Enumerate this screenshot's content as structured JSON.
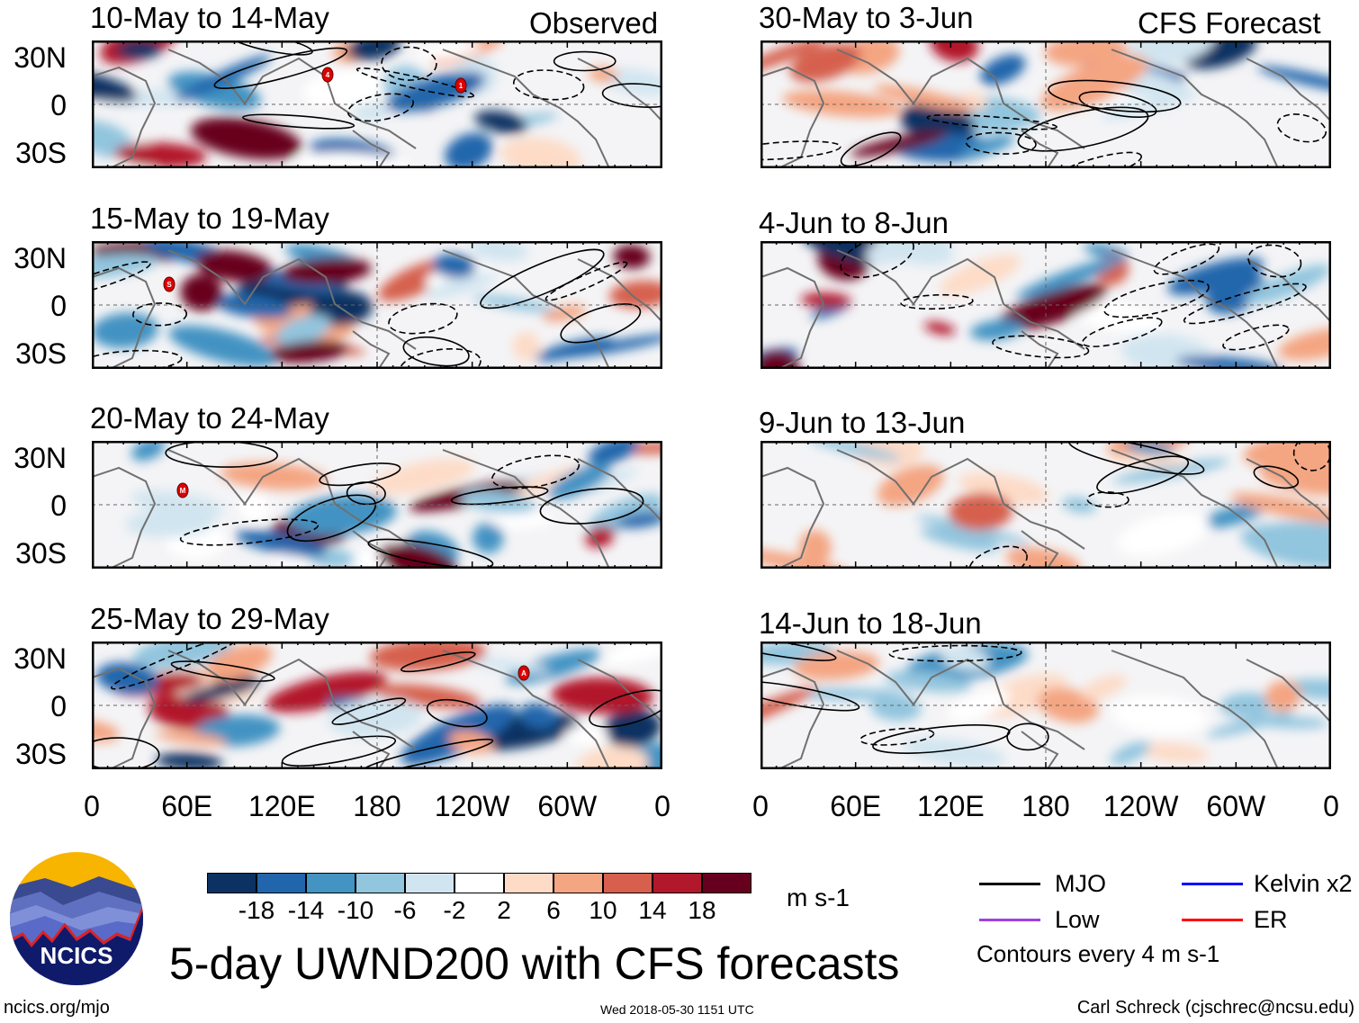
{
  "figure": {
    "title": "5-day UWND200 with CFS forecasts",
    "left_column_label": "Observed",
    "right_column_label": "CFS Forecast",
    "website": "ncics.org/mjo",
    "timestamp": "Wed 2018-05-30 1151 UTC",
    "author": "Carl Schreck (cjschrec@ncsu.edu)",
    "logo_text": "NCICS"
  },
  "panels": [
    {
      "title": "10-May to 14-May",
      "column": "observed",
      "storms": [
        {
          "label": "4"
        },
        {
          "label": "1"
        }
      ]
    },
    {
      "title": "15-May to 19-May",
      "column": "observed",
      "storms": [
        {
          "label": "S"
        }
      ]
    },
    {
      "title": "20-May to 24-May",
      "column": "observed",
      "storms": [
        {
          "label": "M"
        }
      ]
    },
    {
      "title": "25-May to 29-May",
      "column": "observed",
      "storms": [
        {
          "label": "A"
        }
      ]
    },
    {
      "title": "30-May to 3-Jun",
      "column": "forecast",
      "storms": []
    },
    {
      "title": "4-Jun to 8-Jun",
      "column": "forecast",
      "storms": []
    },
    {
      "title": "9-Jun to 13-Jun",
      "column": "forecast",
      "storms": []
    },
    {
      "title": "14-Jun to 18-Jun",
      "column": "forecast",
      "storms": []
    }
  ],
  "axes": {
    "lat_labels": [
      "30N",
      "0",
      "30S"
    ],
    "lon_labels": [
      "0",
      "60E",
      "120E",
      "180",
      "120W",
      "60W",
      "0"
    ]
  },
  "colorbar": {
    "units": "m s-1",
    "labels": [
      "-18",
      "-14",
      "-10",
      "-6",
      "-2",
      "2",
      "6",
      "10",
      "14",
      "18"
    ],
    "colors": [
      "#0b3262",
      "#2166ac",
      "#4393c3",
      "#92c5de",
      "#d1e5f0",
      "#ffffff",
      "#fddbc7",
      "#f4a582",
      "#d6604d",
      "#b2182b",
      "#67001f"
    ]
  },
  "legend": {
    "items": [
      {
        "label": "MJO",
        "color": "#000000"
      },
      {
        "label": "Kelvin x2",
        "color": "#0000ff"
      },
      {
        "label": "Low",
        "color": "#a040e0"
      },
      {
        "label": "ER",
        "color": "#ff0000"
      }
    ],
    "note": "Contours every 4 m s-1"
  }
}
